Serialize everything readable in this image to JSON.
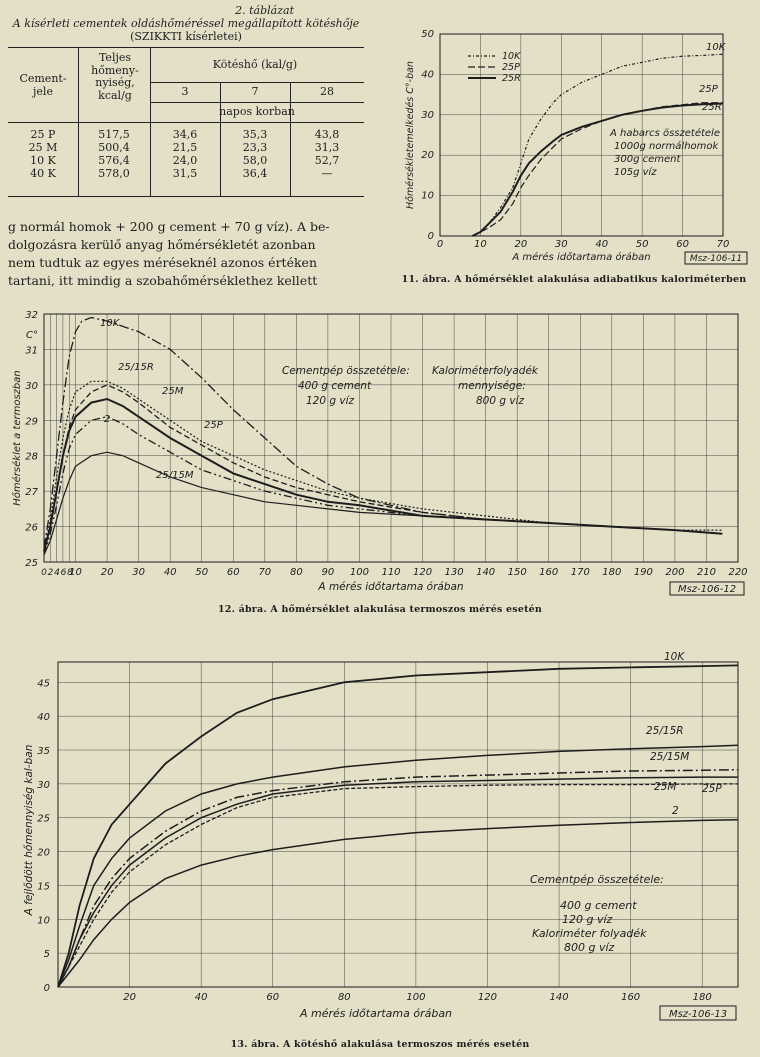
{
  "table2": {
    "number": "2. táblázat",
    "title_line1": "A kísérleti cementek oldáshőméréssel megállapított kötéshője",
    "title_line2": "(SZIKKTI kísérletei)",
    "col_cement": "Cement-\njele",
    "col_total": "Teljes\nhőmeny-\nnyiség,\nkcal/g",
    "col_heat": "Kötéshő (kal/g)",
    "days": [
      "3",
      "7",
      "28"
    ],
    "napos": "napos korban",
    "rows": [
      {
        "jel": "25 P",
        "total": "517,5",
        "d3": "34,6",
        "d7": "35,3",
        "d28": "43,8"
      },
      {
        "jel": "25 M",
        "total": "500,4",
        "d3": "21,5",
        "d7": "23,3",
        "d28": "31,3"
      },
      {
        "jel": "10 K",
        "total": "576,4",
        "d3": "24,0",
        "d7": "58,0",
        "d28": "52,7"
      },
      {
        "jel": "40 K",
        "total": "578,0",
        "d3": "31,5",
        "d7": "36,4",
        "d28": "—"
      }
    ]
  },
  "body_text": {
    "line1": "g normál homok + 200 g cement + 70 g víz). A be-",
    "line2": "dolgozásra kerülő anyag hőmérsékletét azonban",
    "line3": "nem tudtuk az egyes méréseknél azonos értéken",
    "line4": "tartani, itt mindig a szobahőmérséklethez kellett"
  },
  "fig11": {
    "caption": "11. ábra. A hőmérséklet alakulása adiabatikus kaloriméterben",
    "ylabel": "Hőmérsékletemelkedés C°-ban",
    "xlabel": "A mérés időtartama órában",
    "code": "Msz-106-11",
    "legend": [
      "10K",
      "25P",
      "25R"
    ],
    "curve_labels": [
      "10K",
      "25P",
      "25R"
    ],
    "note": [
      "A habarcs összetétele",
      "1000g normálhomok",
      "300g cement",
      "105g víz"
    ],
    "xticks": [
      "0",
      "10",
      "20",
      "30",
      "40",
      "50",
      "60",
      "70"
    ],
    "yticks": [
      "0",
      "10",
      "20",
      "30",
      "40",
      "50"
    ],
    "colors": {
      "line": "#1d1d1d",
      "bg": "#e4e0c8"
    }
  },
  "fig12": {
    "caption": "12. ábra. A hőmérséklet alakulása termoszos mérés esetén",
    "ylabel": "Hőmérséklet a termoszban",
    "y_unit": "C°",
    "xlabel": "A mérés időtartama órában",
    "code": "Msz-106-12",
    "curve_labels": [
      "10K",
      "25/15R",
      "25M",
      "25P",
      "25/15M",
      "2"
    ],
    "note1": [
      "Cementpép összetétele:",
      "400 g cement",
      "120 g víz"
    ],
    "note2": [
      "Kaloriméterfolyadék",
      "mennyisége:",
      "800 g víz"
    ],
    "xticks": [
      "0",
      "2",
      "4",
      "6",
      "8",
      "10",
      "20",
      "30",
      "40",
      "50",
      "60",
      "70",
      "80",
      "90",
      "100",
      "110",
      "120",
      "130",
      "140",
      "150",
      "160",
      "170",
      "180",
      "190",
      "200",
      "210",
      "220"
    ],
    "yticks": [
      "25",
      "26",
      "27",
      "28",
      "29",
      "30",
      "31",
      "32"
    ]
  },
  "fig13": {
    "caption": "13. ábra. A kötéshő alakulása termoszos mérés esetén",
    "ylabel": "A fejlődött hőmennyiség kal-ban",
    "xlabel": "A mérés időtartama órában",
    "code": "Msz-106-13",
    "curve_labels": [
      "10K",
      "25/15R",
      "25/15M",
      "25M",
      "25P",
      "2"
    ],
    "note": [
      "Cementpép összetétele:",
      "400 g cement",
      "120 g víz",
      "Kaloriméter folyadék",
      "800 g víz"
    ],
    "xticks": [
      "0",
      "20",
      "40",
      "60",
      "80",
      "100",
      "120",
      "140",
      "160",
      "180"
    ],
    "yticks": [
      "0",
      "5",
      "10",
      "15",
      "20",
      "25",
      "30",
      "35",
      "40",
      "45"
    ]
  },
  "chart_data": [
    {
      "type": "line",
      "title": "11. ábra. A hőmérséklet alakulása adiabatikus kaloriméterben",
      "xlabel": "A mérés időtartama órában",
      "ylabel": "Hőmérsékletemelkedés C°-ban",
      "xlim": [
        0,
        70
      ],
      "ylim": [
        0,
        50
      ],
      "series": [
        {
          "name": "10K",
          "x": [
            8,
            10,
            12,
            15,
            18,
            20,
            22,
            25,
            28,
            30,
            35,
            40,
            45,
            50,
            55,
            60,
            65,
            70
          ],
          "y": [
            0,
            1,
            3,
            7,
            12,
            18,
            24,
            29,
            33,
            35,
            38,
            40,
            42,
            43,
            44,
            44.5,
            44.7,
            45
          ]
        },
        {
          "name": "25P",
          "x": [
            8,
            10,
            12,
            15,
            18,
            20,
            22,
            25,
            28,
            30,
            35,
            40,
            45,
            50,
            55,
            60,
            65,
            70
          ],
          "y": [
            0,
            1,
            2,
            4,
            8,
            12,
            15,
            19,
            22,
            24,
            26.5,
            28.5,
            30,
            31,
            32,
            32.5,
            33,
            33
          ]
        },
        {
          "name": "25R",
          "x": [
            8,
            10,
            12,
            15,
            18,
            20,
            22,
            25,
            28,
            30,
            35,
            40,
            45,
            50,
            55,
            60,
            65,
            70
          ],
          "y": [
            0,
            1,
            3,
            6,
            11,
            15,
            18,
            21,
            23.5,
            25,
            27,
            28.5,
            30,
            31,
            31.8,
            32.3,
            32.6,
            32.8
          ]
        }
      ]
    },
    {
      "type": "line",
      "title": "12. ábra. A hőmérséklet alakulása termoszos mérés esetén",
      "xlabel": "A mérés időtartama órában",
      "ylabel": "Hőmérséklet a termoszban",
      "xlim": [
        0,
        220
      ],
      "ylim": [
        25,
        32
      ],
      "series": [
        {
          "name": "10K",
          "x": [
            0,
            2,
            4,
            6,
            8,
            10,
            12,
            15,
            20,
            30,
            40,
            50,
            60,
            70,
            80,
            90,
            100,
            120,
            140,
            160,
            180,
            200,
            215
          ],
          "y": [
            25.4,
            26.5,
            28,
            29.5,
            30.8,
            31.5,
            31.8,
            31.9,
            31.8,
            31.5,
            31,
            30.2,
            29.3,
            28.5,
            27.7,
            27.2,
            26.8,
            26.4,
            26.2,
            26.1,
            26.0,
            25.9,
            25.8
          ]
        },
        {
          "name": "25/15R",
          "x": [
            0,
            2,
            4,
            6,
            8,
            10,
            15,
            20,
            25,
            30,
            40,
            50,
            60,
            70,
            80,
            90,
            100,
            120,
            140,
            160,
            180,
            200,
            215
          ],
          "y": [
            25.3,
            26,
            27,
            28,
            28.8,
            29.3,
            29.8,
            30,
            29.8,
            29.5,
            28.8,
            28.3,
            27.8,
            27.4,
            27.1,
            26.9,
            26.7,
            26.4,
            26.2,
            26.1,
            26.0,
            25.9,
            25.8
          ]
        },
        {
          "name": "25M",
          "x": [
            0,
            2,
            4,
            6,
            8,
            10,
            15,
            20,
            25,
            30,
            40,
            50,
            60,
            70,
            80,
            90,
            100,
            120,
            140,
            160,
            180,
            200,
            215
          ],
          "y": [
            25.3,
            26,
            27,
            28,
            28.7,
            29.1,
            29.5,
            29.6,
            29.4,
            29.1,
            28.5,
            28,
            27.5,
            27.2,
            26.9,
            26.7,
            26.6,
            26.3,
            26.2,
            26.1,
            26.0,
            25.9,
            25.8
          ]
        },
        {
          "name": "25P",
          "x": [
            0,
            2,
            4,
            6,
            8,
            10,
            15,
            20,
            25,
            30,
            40,
            50,
            60,
            70,
            80,
            90,
            100,
            120,
            140,
            160,
            180,
            200,
            215
          ],
          "y": [
            25.3,
            26.2,
            27.4,
            28.5,
            29.3,
            29.8,
            30.1,
            30.1,
            29.9,
            29.6,
            29,
            28.4,
            28,
            27.6,
            27.3,
            27.0,
            26.8,
            26.5,
            26.3,
            26.1,
            26.0,
            25.9,
            25.9
          ]
        },
        {
          "name": "25/15M",
          "x": [
            0,
            2,
            4,
            6,
            8,
            10,
            15,
            20,
            25,
            30,
            40,
            50,
            60,
            70,
            80,
            90,
            100,
            120,
            140,
            160,
            180,
            200,
            215
          ],
          "y": [
            25.2,
            25.8,
            26.6,
            27.5,
            28.2,
            28.6,
            29,
            29.1,
            28.9,
            28.6,
            28.1,
            27.6,
            27.3,
            27.0,
            26.8,
            26.6,
            26.5,
            26.3,
            26.2,
            26.1,
            26.0,
            25.9,
            25.8
          ]
        },
        {
          "name": "2",
          "x": [
            0,
            2,
            4,
            6,
            8,
            10,
            15,
            20,
            25,
            30,
            40,
            50,
            60,
            70,
            80,
            90,
            100,
            120,
            140,
            160,
            180,
            200,
            215
          ],
          "y": [
            25.2,
            25.6,
            26.2,
            26.8,
            27.3,
            27.7,
            28,
            28.1,
            28,
            27.8,
            27.4,
            27.1,
            26.9,
            26.7,
            26.6,
            26.5,
            26.4,
            26.3,
            26.2,
            26.1,
            26.0,
            25.9,
            25.8
          ]
        }
      ]
    },
    {
      "type": "line",
      "title": "13. ábra. A kötéshő alakulása termoszos mérés esetén",
      "xlabel": "A mérés időtartama órában",
      "ylabel": "A fejlődött hőmennyiség kal-ban",
      "xlim": [
        0,
        190
      ],
      "ylim": [
        0,
        48
      ],
      "series": [
        {
          "name": "10K",
          "x": [
            0,
            3,
            6,
            10,
            15,
            20,
            30,
            40,
            50,
            60,
            80,
            100,
            120,
            140,
            160,
            180,
            190
          ],
          "y": [
            0,
            5,
            12,
            19,
            24,
            27,
            33,
            37,
            40.5,
            42.5,
            45,
            46,
            46.5,
            47,
            47.2,
            47.4,
            47.5
          ]
        },
        {
          "name": "25/15R",
          "x": [
            0,
            3,
            6,
            10,
            15,
            20,
            30,
            40,
            50,
            60,
            80,
            100,
            120,
            140,
            160,
            180,
            190
          ],
          "y": [
            0,
            4,
            9,
            15,
            19,
            22,
            26,
            28.5,
            30,
            31,
            32.5,
            33.5,
            34.2,
            34.8,
            35.2,
            35.5,
            35.7
          ]
        },
        {
          "name": "25/15M",
          "x": [
            0,
            3,
            6,
            10,
            15,
            20,
            30,
            40,
            50,
            60,
            80,
            100,
            120,
            140,
            160,
            180,
            190
          ],
          "y": [
            0,
            3,
            7,
            12,
            16,
            19,
            23,
            26,
            28,
            29,
            30.3,
            31,
            31.3,
            31.6,
            31.9,
            32,
            32.1
          ]
        },
        {
          "name": "25M",
          "x": [
            0,
            3,
            6,
            10,
            15,
            20,
            30,
            40,
            50,
            60,
            80,
            100,
            120,
            140,
            160,
            180,
            190
          ],
          "y": [
            0,
            3,
            7,
            11,
            15,
            18,
            22,
            25,
            27,
            28.5,
            29.8,
            30.3,
            30.5,
            30.7,
            30.9,
            31,
            31
          ]
        },
        {
          "name": "25P",
          "x": [
            0,
            3,
            6,
            10,
            15,
            20,
            30,
            40,
            50,
            60,
            80,
            100,
            120,
            140,
            160,
            180,
            190
          ],
          "y": [
            0,
            3,
            6,
            10,
            14,
            17,
            21,
            24,
            26.5,
            28,
            29.3,
            29.6,
            29.8,
            29.9,
            29.9,
            30,
            30
          ]
        },
        {
          "name": "2",
          "x": [
            0,
            3,
            6,
            10,
            15,
            20,
            30,
            40,
            50,
            60,
            80,
            100,
            120,
            140,
            160,
            180,
            190
          ],
          "y": [
            0,
            2,
            4,
            7,
            10,
            12.5,
            16,
            18,
            19.3,
            20.3,
            21.8,
            22.8,
            23.4,
            23.9,
            24.3,
            24.6,
            24.7
          ]
        }
      ]
    }
  ]
}
